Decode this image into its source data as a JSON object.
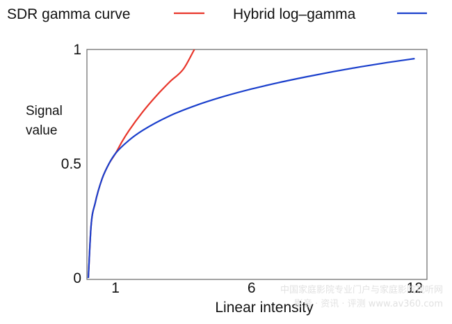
{
  "chart_data": {
    "type": "line",
    "title": "",
    "xlabel": "Linear intensity",
    "ylabel": "Signal value",
    "xlim": [
      0,
      12.4
    ],
    "ylim": [
      0,
      1
    ],
    "x_ticks": [
      {
        "value": 1,
        "label": "1"
      },
      {
        "value": 6,
        "label": "6"
      },
      {
        "value": 12,
        "label": "12"
      }
    ],
    "y_ticks": [
      {
        "value": 0,
        "label": "0"
      },
      {
        "value": 0.5,
        "label": "0.5"
      },
      {
        "value": 1,
        "label": "1"
      }
    ],
    "grid": false,
    "legend_position": "top",
    "series": [
      {
        "name": "SDR gamma curve",
        "color": "#e8352a",
        "x": [
          0,
          0.1,
          0.25,
          0.5,
          0.75,
          1,
          1.25,
          1.5,
          2,
          2.5,
          3,
          3.5,
          3.9
        ],
        "y": [
          0,
          0.226,
          0.327,
          0.432,
          0.498,
          0.545,
          0.599,
          0.646,
          0.727,
          0.797,
          0.859,
          0.915,
          1.0
        ]
      },
      {
        "name": "Hybrid log–gamma",
        "color": "#1a3fcc",
        "x": [
          0,
          0.1,
          0.25,
          0.5,
          0.75,
          1,
          1.5,
          2,
          3,
          4,
          5,
          6,
          7,
          8,
          9,
          10,
          11,
          12
        ],
        "y": [
          0,
          0.226,
          0.327,
          0.432,
          0.498,
          0.545,
          0.603,
          0.646,
          0.71,
          0.757,
          0.795,
          0.827,
          0.855,
          0.88,
          0.903,
          0.924,
          0.943,
          0.96
        ]
      }
    ]
  },
  "watermark": {
    "line1": "中国家庭影院专业门户与家庭影院视听网",
    "line2": "影音 · 资讯 · 评测   www.av360.com"
  }
}
